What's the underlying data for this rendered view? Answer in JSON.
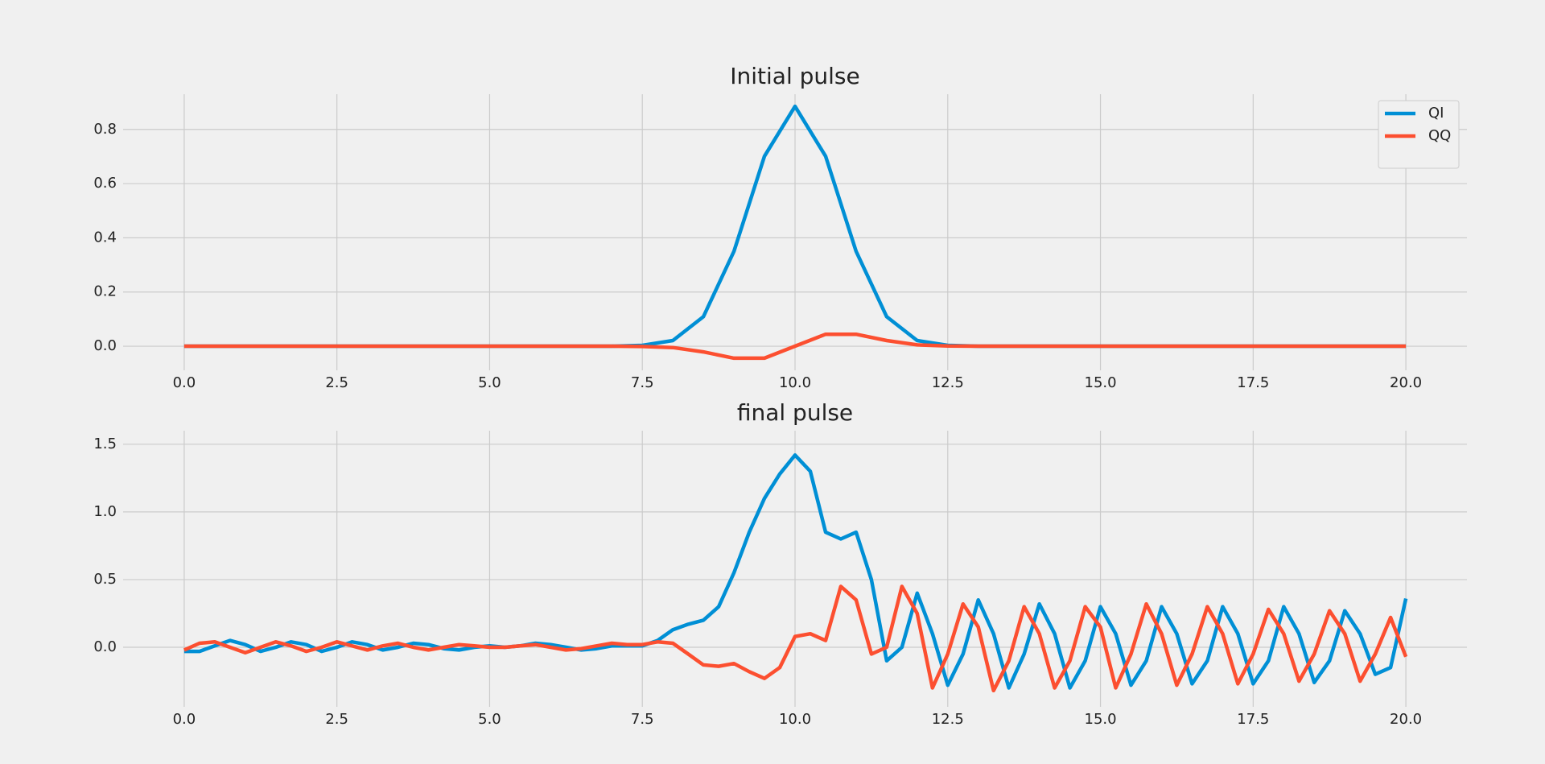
{
  "chart_data": [
    {
      "type": "line",
      "title": "Initial pulse",
      "x": [
        0,
        0.5,
        1,
        1.5,
        2,
        2.5,
        3,
        3.5,
        4,
        4.5,
        5,
        5.5,
        6,
        6.5,
        7,
        7.5,
        8,
        8.5,
        9,
        9.5,
        10,
        10.5,
        11,
        11.5,
        12,
        12.5,
        13,
        13.5,
        14,
        14.5,
        15,
        15.5,
        16,
        16.5,
        17,
        17.5,
        18,
        18.5,
        19,
        19.5,
        20
      ],
      "series": [
        {
          "name": "QI",
          "color": "#008fd5",
          "values": [
            0,
            0,
            0,
            0,
            0,
            0,
            0,
            0,
            0,
            0,
            0,
            0,
            0,
            0,
            0,
            0.003,
            0.021,
            0.109,
            0.35,
            0.701,
            0.885,
            0.701,
            0.35,
            0.109,
            0.021,
            0.003,
            0,
            0,
            0,
            0,
            0,
            0,
            0,
            0,
            0,
            0,
            0,
            0,
            0,
            0,
            0
          ]
        },
        {
          "name": "QQ",
          "color": "#fc4f30",
          "values": [
            0,
            0,
            0,
            0,
            0,
            0,
            0,
            0,
            0,
            0,
            0,
            0,
            0,
            0,
            0,
            -0.001,
            -0.005,
            -0.021,
            -0.044,
            -0.044,
            0,
            0.044,
            0.044,
            0.021,
            0.005,
            0.001,
            0,
            0,
            0,
            0,
            0,
            0,
            0,
            0,
            0,
            0,
            0,
            0,
            0,
            0,
            0
          ]
        }
      ],
      "xlim": [
        -1,
        21
      ],
      "xticks": [
        {
          "value": 0,
          "label": "0.0"
        },
        2.5,
        {
          "value": 5,
          "label": "5.0"
        },
        7.5,
        {
          "value": 10,
          "label": "10.0"
        },
        12.5,
        {
          "value": 15,
          "label": "15.0"
        },
        17.5,
        {
          "value": 20,
          "label": "20.0"
        }
      ],
      "ylim": [
        -0.089,
        0.93
      ],
      "yticks": [
        {
          "value": 0,
          "label": "0.0"
        },
        0.2,
        0.4,
        0.6,
        0.8
      ],
      "grid": true,
      "legend": "upper right"
    },
    {
      "type": "line",
      "title": "final pulse",
      "x": [
        0,
        0.25,
        0.5,
        0.75,
        1,
        1.25,
        1.5,
        1.75,
        2,
        2.25,
        2.5,
        2.75,
        3,
        3.25,
        3.5,
        3.75,
        4,
        4.25,
        4.5,
        4.75,
        5,
        5.25,
        5.5,
        5.75,
        6,
        6.25,
        6.5,
        6.75,
        7,
        7.25,
        7.5,
        7.75,
        8,
        8.25,
        8.5,
        8.75,
        9,
        9.25,
        9.5,
        9.75,
        10,
        10.25,
        10.5,
        10.75,
        11,
        11.25,
        11.5,
        11.75,
        12,
        12.25,
        12.5,
        12.75,
        13,
        13.25,
        13.5,
        13.75,
        14,
        14.25,
        14.5,
        14.75,
        15,
        15.25,
        15.5,
        15.75,
        16,
        16.25,
        16.5,
        16.75,
        17,
        17.25,
        17.5,
        17.75,
        18,
        18.25,
        18.5,
        18.75,
        19,
        19.25,
        19.5,
        19.75,
        20
      ],
      "series": [
        {
          "name": "QI",
          "color": "#008fd5",
          "values": [
            -0.03,
            -0.03,
            0.01,
            0.05,
            0.02,
            -0.03,
            0,
            0.04,
            0.02,
            -0.03,
            0,
            0.04,
            0.02,
            -0.02,
            0,
            0.03,
            0.02,
            -0.01,
            -0.02,
            0,
            0.01,
            0,
            0.01,
            0.03,
            0.02,
            0,
            -0.02,
            -0.01,
            0.01,
            0.01,
            0.01,
            0.05,
            0.13,
            0.17,
            0.2,
            0.3,
            0.55,
            0.85,
            1.1,
            1.28,
            1.42,
            1.3,
            0.85,
            0.8,
            0.85,
            0.5,
            -0.1,
            0,
            0.4,
            0.1,
            -0.28,
            -0.05,
            0.35,
            0.1,
            -0.3,
            -0.05,
            0.32,
            0.1,
            -0.3,
            -0.1,
            0.3,
            0.1,
            -0.28,
            -0.1,
            0.3,
            0.1,
            -0.27,
            -0.1,
            0.3,
            0.1,
            -0.27,
            -0.1,
            0.3,
            0.1,
            -0.26,
            -0.1,
            0.27,
            0.1,
            -0.2,
            -0.15,
            0.36
          ]
        },
        {
          "name": "QQ",
          "color": "#fc4f30",
          "values": [
            -0.02,
            0.03,
            0.04,
            0,
            -0.04,
            0,
            0.04,
            0.01,
            -0.03,
            0,
            0.04,
            0.01,
            -0.02,
            0.01,
            0.03,
            0,
            -0.02,
            0,
            0.02,
            0.01,
            0,
            0,
            0.01,
            0.02,
            0,
            -0.02,
            -0.01,
            0.01,
            0.03,
            0.02,
            0.02,
            0.04,
            0.03,
            -0.05,
            -0.13,
            -0.14,
            -0.12,
            -0.18,
            -0.23,
            -0.15,
            0.08,
            0.1,
            0.05,
            0.45,
            0.35,
            -0.05,
            0,
            0.45,
            0.25,
            -0.3,
            -0.05,
            0.32,
            0.15,
            -0.32,
            -0.1,
            0.3,
            0.1,
            -0.3,
            -0.1,
            0.3,
            0.15,
            -0.3,
            -0.05,
            0.32,
            0.1,
            -0.28,
            -0.05,
            0.3,
            0.1,
            -0.27,
            -0.05,
            0.28,
            0.1,
            -0.25,
            -0.05,
            0.27,
            0.1,
            -0.25,
            -0.05,
            0.22,
            -0.07
          ]
        }
      ],
      "xlim": [
        -1,
        21
      ],
      "xticks": [
        {
          "value": 0,
          "label": "0.0"
        },
        2.5,
        {
          "value": 5,
          "label": "5.0"
        },
        7.5,
        {
          "value": 10,
          "label": "10.0"
        },
        12.5,
        {
          "value": 15,
          "label": "15.0"
        },
        17.5,
        {
          "value": 20,
          "label": "20.0"
        }
      ],
      "ylim": [
        -0.44,
        1.6
      ],
      "yticks": [
        {
          "value": 0,
          "label": "0.0"
        },
        0.5,
        {
          "value": 1,
          "label": "1.0"
        },
        1.5
      ],
      "grid": true
    }
  ]
}
